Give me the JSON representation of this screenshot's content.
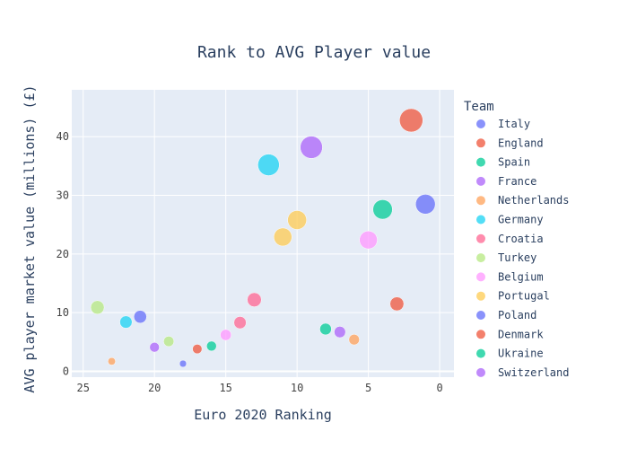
{
  "chart_data": {
    "type": "scatter",
    "title": "Rank to AVG Player value",
    "xlabel": "Euro 2020 Ranking",
    "ylabel": "AVG player market value (millions) (£)",
    "x_reversed": true,
    "xlim": [
      25.8,
      -1
    ],
    "ylim": [
      -1,
      48
    ],
    "x_ticks": [
      25,
      20,
      15,
      10,
      5,
      0
    ],
    "y_ticks": [
      0,
      10,
      20,
      30,
      40
    ],
    "grid": true,
    "legend": {
      "title": "Team",
      "placement": "right"
    },
    "series": [
      {
        "name": "Italy",
        "color": "#636efa",
        "points": [
          {
            "x": 1,
            "y": 28.5
          },
          {
            "x": 18,
            "y": 1.3
          }
        ]
      },
      {
        "name": "England",
        "color": "#EF553B",
        "points": [
          {
            "x": 2,
            "y": 42.8
          },
          {
            "x": 17,
            "y": 3.8
          }
        ]
      },
      {
        "name": "Spain",
        "color": "#00cc96",
        "points": [
          {
            "x": 4,
            "y": 27.6
          },
          {
            "x": 16,
            "y": 4.3
          }
        ]
      },
      {
        "name": "France",
        "color": "#ab63fa",
        "points": [
          {
            "x": 9,
            "y": 38.2
          },
          {
            "x": 20,
            "y": 4.1
          }
        ]
      },
      {
        "name": "Netherlands",
        "color": "#FFA15A",
        "points": [
          {
            "x": 6,
            "y": 5.4
          },
          {
            "x": 23,
            "y": 1.7
          }
        ]
      },
      {
        "name": "Germany",
        "color": "#19d3f3",
        "points": [
          {
            "x": 12,
            "y": 35.2
          },
          {
            "x": 22,
            "y": 8.4
          }
        ]
      },
      {
        "name": "Croatia",
        "color": "#FF6692",
        "points": [
          {
            "x": 13,
            "y": 12.2
          },
          {
            "x": 14,
            "y": 8.3
          }
        ]
      },
      {
        "name": "Turkey",
        "color": "#B6E880",
        "points": [
          {
            "x": 24,
            "y": 10.9
          },
          {
            "x": 19,
            "y": 5.1
          }
        ]
      },
      {
        "name": "Belgium",
        "color": "#FF97FF",
        "points": [
          {
            "x": 5,
            "y": 22.4
          },
          {
            "x": 15,
            "y": 6.2
          }
        ]
      },
      {
        "name": "Portugal",
        "color": "#FECB52",
        "points": [
          {
            "x": 10,
            "y": 25.8
          },
          {
            "x": 11,
            "y": 22.9
          }
        ]
      },
      {
        "name": "Poland",
        "color": "#636efa",
        "points": [
          {
            "x": 21,
            "y": 9.3
          }
        ]
      },
      {
        "name": "Denmark",
        "color": "#EF553B",
        "points": [
          {
            "x": 3,
            "y": 11.5
          }
        ]
      },
      {
        "name": "Ukraine",
        "color": "#00cc96",
        "points": [
          {
            "x": 8,
            "y": 7.2
          }
        ]
      },
      {
        "name": "Switzerland",
        "color": "#ab63fa",
        "points": [
          {
            "x": 7,
            "y": 6.7
          }
        ]
      }
    ]
  }
}
